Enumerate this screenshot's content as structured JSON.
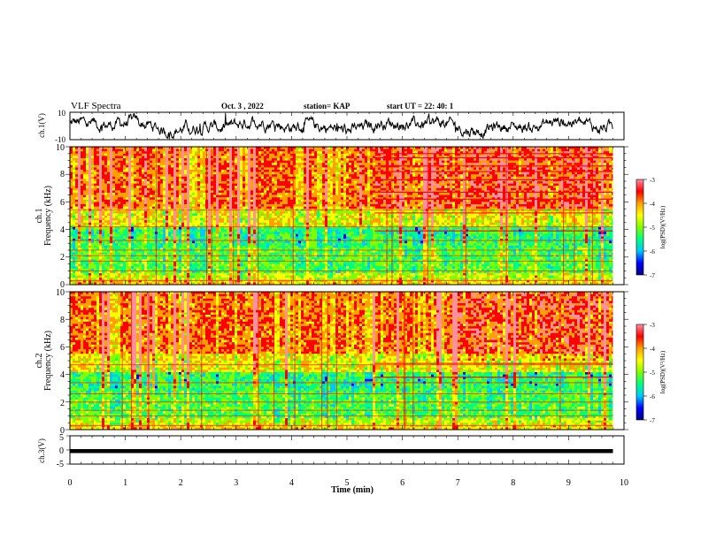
{
  "header": {
    "title": "VLF Spectra",
    "date": "Oct. 3 , 2022",
    "station": "station= KAP",
    "start": "start UT = 22: 40: 1"
  },
  "colors": {
    "spectrum": [
      "#000080",
      "#0000ff",
      "#00c8ff",
      "#00ff80",
      "#80ff00",
      "#ffff00",
      "#ffa000",
      "#ff0000",
      "#ff90a0",
      "#ffffff"
    ],
    "trace": "#000000"
  },
  "chart_data": [
    {
      "type": "line",
      "name": "ch1-waveform",
      "ylabel": "ch.1(V)",
      "ylim": [
        -10,
        10
      ],
      "yticks": [
        "10",
        "-10"
      ],
      "xlim": [
        0,
        10
      ],
      "data_extent_min": 9.8
    },
    {
      "type": "heatmap",
      "name": "ch1-spectrogram",
      "ylabel": [
        "ch.1",
        "Frequency (kHz)"
      ],
      "ylim": [
        0,
        10
      ],
      "yticks": [
        "0",
        "2",
        "4",
        "6",
        "8",
        "10"
      ],
      "xlim": [
        0,
        10
      ],
      "data_extent_min": 9.8,
      "colorbar": {
        "label": "log(PSD)(V²/Hz)",
        "range": [
          -7,
          -3
        ],
        "ticks": [
          "-3",
          "-4",
          "-5",
          "-6",
          "-7"
        ]
      },
      "band_lines_khz": [
        0.3,
        1.0,
        1.7,
        2.1,
        2.5,
        3.2,
        4.2,
        5.4
      ],
      "late_band_lines_khz": [
        3.9,
        5.2,
        6.2,
        6.7,
        7.6,
        8.2,
        8.6,
        9.2,
        9.5
      ]
    },
    {
      "type": "heatmap",
      "name": "ch2-spectrogram",
      "ylabel": [
        "ch.2",
        "Frequency (kHz)"
      ],
      "ylim": [
        0,
        10
      ],
      "yticks": [
        "0",
        "2",
        "4",
        "6",
        "8",
        "10"
      ],
      "xlim": [
        0,
        10
      ],
      "data_extent_min": 9.8,
      "colorbar": {
        "label": "log(PSD)(V²/Hz)",
        "range": [
          -7,
          -3
        ],
        "ticks": [
          "-3",
          "-4",
          "-5",
          "-6",
          "-7"
        ]
      },
      "band_lines_khz": [
        0.3,
        1.0,
        1.4,
        2.0,
        2.6,
        3.4,
        4.7
      ],
      "late_band_lines_khz": [
        3.8,
        4.8
      ]
    },
    {
      "type": "line",
      "name": "ch3-waveform",
      "ylabel": "ch.3(V)",
      "ylim": [
        -5,
        5
      ],
      "yticks": [
        "5",
        "0",
        "-5"
      ],
      "xlim": [
        0,
        10
      ],
      "data_extent_min": 9.8,
      "level_v": -0.4,
      "xlabel": "Time (min)",
      "xticks": [
        "0",
        "1",
        "2",
        "3",
        "4",
        "5",
        "6",
        "7",
        "8",
        "9",
        "10"
      ]
    }
  ]
}
